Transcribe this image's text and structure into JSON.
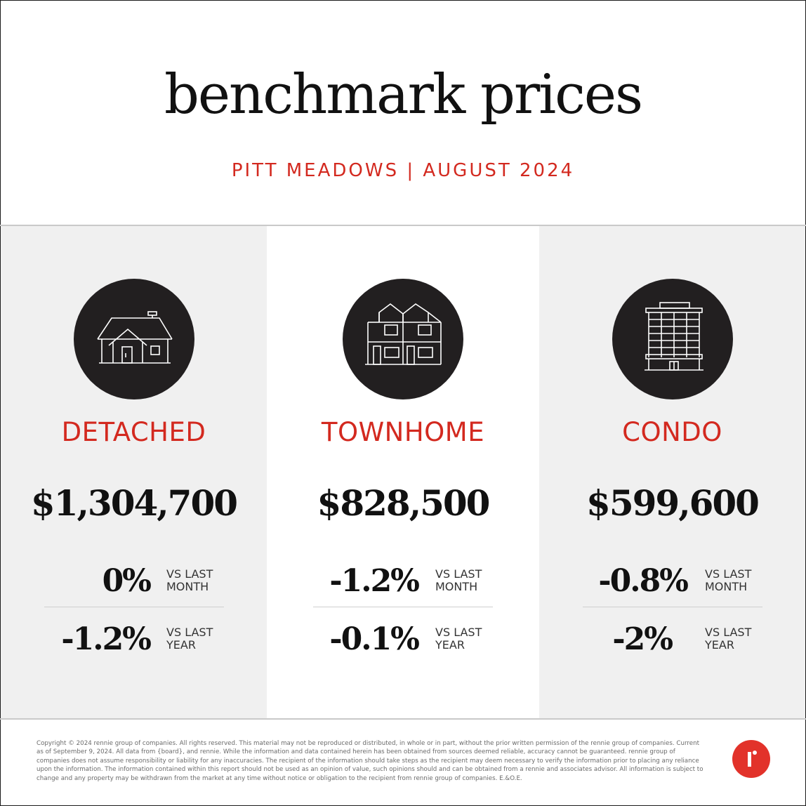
{
  "header": {
    "title": "benchmark prices",
    "subtitle": "PITT MEADOWS | AUGUST 2024"
  },
  "colors": {
    "accent": "#d3291f",
    "icon_circle": "#221f20",
    "panel_gray": "#f0f0f0",
    "logo": "#e2322a"
  },
  "panels": [
    {
      "icon": "house-icon",
      "type": "DETACHED",
      "price": "$1,304,700",
      "month_change": "0%",
      "month_label": "VS LAST\nMONTH",
      "year_change": "-1.2%",
      "year_label": "VS LAST\nYEAR"
    },
    {
      "icon": "townhome-icon",
      "type": "TOWNHOME",
      "price": "$828,500",
      "month_change": "-1.2%",
      "month_label": "VS LAST\nMONTH",
      "year_change": "-0.1%",
      "year_label": "VS LAST\nYEAR"
    },
    {
      "icon": "condo-building-icon",
      "type": "CONDO",
      "price": "$599,600",
      "month_change": "-0.8%",
      "month_label": "VS LAST\nMONTH",
      "year_change": "-2%",
      "year_label": "VS LAST\nYEAR"
    }
  ],
  "footer": {
    "disclaimer": "Copyright © 2024 rennie group of companies. All rights reserved. This material may not be reproduced or distributed, in whole or in part, without the prior written permission of the rennie group of companies. Current as of September 9, 2024. All data from {board}, and rennie. While the information and data contained herein has been obtained from sources deemed reliable, accuracy cannot be guaranteed. rennie group of companies does not assume responsibility or liability for any inaccuracies. The recipient of the information should take steps as the recipient may deem necessary to verify the information prior to placing any reliance upon the information. The information contained within this report should not be used as an opinion of value, such opinions should and can be obtained from a rennie and associates advisor. All information is subject to change and any property may be withdrawn from the market at any time without notice or obligation to the recipient from rennie group of companies. E.&O.E.",
    "logo": "rennie-logo-icon"
  }
}
